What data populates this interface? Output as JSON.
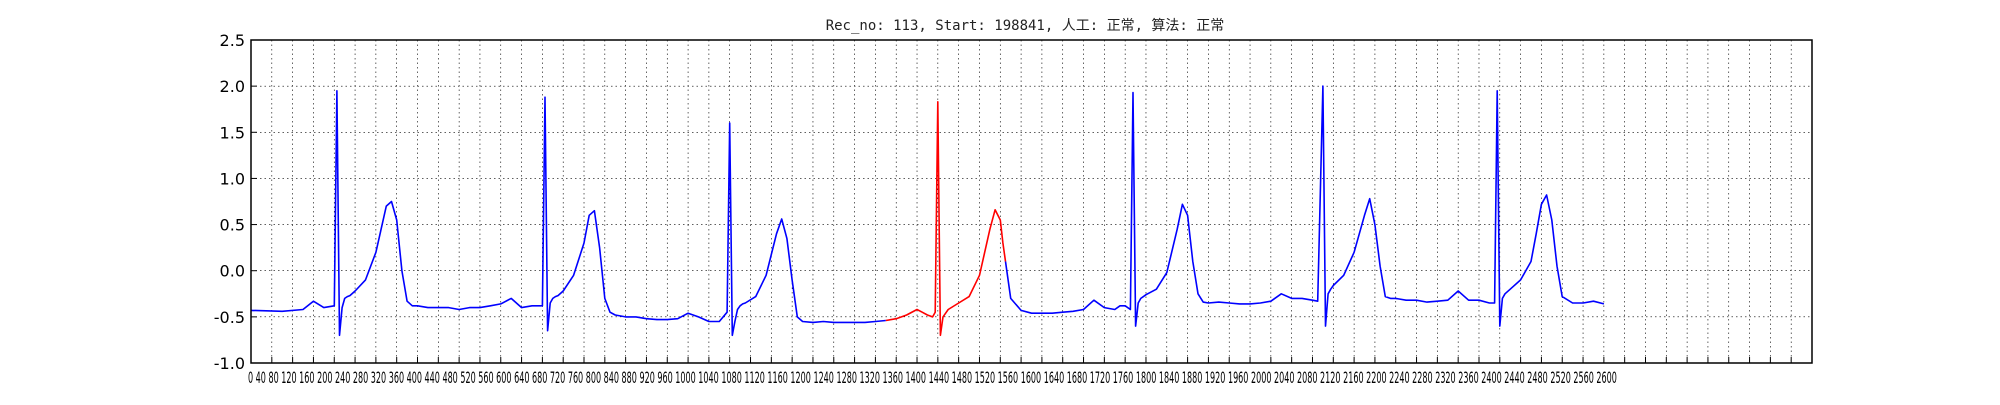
{
  "chart_data": {
    "type": "line",
    "title": "Rec_no: 113, Start: 198841, 人工: 正常, 算法: 正常",
    "xlabel": "",
    "ylabel": "",
    "xlim": [
      0,
      3000
    ],
    "ylim": [
      -1.0,
      2.5
    ],
    "grid": true,
    "y_ticks": [
      -1.0,
      -0.5,
      0.0,
      0.5,
      1.0,
      1.5,
      2.0,
      2.5
    ],
    "x_ticks": [
      0,
      40,
      80,
      120,
      160,
      200,
      240,
      280,
      320,
      360,
      400,
      440,
      480,
      520,
      560,
      600,
      640,
      680,
      720,
      760,
      800,
      840,
      880,
      920,
      960,
      1000,
      1040,
      1080,
      1120,
      1160,
      1200,
      1240,
      1280,
      1320,
      1360,
      1400,
      1440,
      1480,
      1520,
      1560,
      1600,
      1640,
      1680,
      1720,
      1760,
      1800,
      1840,
      1880,
      1920,
      1960,
      2000,
      2040,
      2080,
      2120,
      2160,
      2200,
      2240,
      2280,
      2320,
      2360,
      2400,
      2440,
      2480,
      2520,
      2560,
      2600,
      2640,
      2680,
      2720,
      2760,
      2800,
      2840,
      2880,
      2920,
      2960,
      3000
    ],
    "x_ticklabels_shown": "0 40 80 120 160 200 240 280 320 360 400 440 480 520 560 600 640 680 720 760 800 840 880 920 960 1000 1040 1080 1120 1160 1200 1240 1280 1320 1360 1400 1440 1480 1520 1560 1600 1640 1680 1720 1760 1800 1840 1880 1920 1960 2000 2040 2080 2120 2160 2200 2240 2280 2320 2360 2400 2440 2480 2520 2560 2600",
    "series": [
      {
        "color": "#0000ff",
        "x": [
          0,
          60,
          100,
          120,
          140,
          160,
          165,
          170,
          175,
          180,
          185,
          190,
          200,
          220,
          240,
          260,
          270,
          280,
          290,
          300,
          310,
          320,
          340,
          360,
          380,
          400,
          420,
          440,
          460,
          480,
          500,
          520,
          540,
          560,
          565,
          570,
          575,
          580,
          585,
          590,
          600,
          620,
          640,
          650,
          660,
          670,
          680,
          690,
          700,
          720,
          740,
          760,
          780,
          800,
          820,
          840,
          860,
          880,
          900,
          915,
          920,
          925,
          930,
          935,
          940,
          945,
          950,
          970,
          990,
          1010,
          1020,
          1030,
          1040,
          1050,
          1060,
          1080,
          1100,
          1120,
          1140,
          1160,
          1180,
          1200,
          1220
        ],
        "y": [
          -0.43,
          -0.44,
          -0.42,
          -0.33,
          -0.4,
          -0.38,
          1.95,
          -0.7,
          -0.4,
          -0.3,
          -0.28,
          -0.27,
          -0.22,
          -0.1,
          0.2,
          0.7,
          0.75,
          0.55,
          0.0,
          -0.33,
          -0.38,
          -0.38,
          -0.4,
          -0.4,
          -0.4,
          -0.42,
          -0.4,
          -0.4,
          -0.38,
          -0.36,
          -0.3,
          -0.4,
          -0.38,
          -0.38,
          1.88,
          -0.65,
          -0.35,
          -0.3,
          -0.28,
          -0.27,
          -0.22,
          -0.05,
          0.3,
          0.6,
          0.65,
          0.25,
          -0.3,
          -0.45,
          -0.48,
          -0.5,
          -0.5,
          -0.52,
          -0.53,
          -0.53,
          -0.52,
          -0.46,
          -0.5,
          -0.55,
          -0.55,
          -0.45,
          1.6,
          -0.7,
          -0.55,
          -0.42,
          -0.38,
          -0.36,
          -0.35,
          -0.28,
          -0.05,
          0.4,
          0.56,
          0.35,
          -0.1,
          -0.5,
          -0.55,
          -0.56,
          -0.55,
          -0.56,
          -0.56,
          -0.56,
          -0.56,
          -0.55,
          -0.54
        ]
      },
      {
        "color": "#ff0000",
        "x": [
          1220,
          1240,
          1260,
          1280,
          1290,
          1300,
          1310,
          1315,
          1320,
          1325,
          1330,
          1340,
          1360,
          1380,
          1400,
          1420,
          1430,
          1440,
          1445,
          1450
        ],
        "y": [
          -0.54,
          -0.52,
          -0.48,
          -0.42,
          -0.45,
          -0.48,
          -0.5,
          -0.45,
          1.83,
          -0.7,
          -0.5,
          -0.42,
          -0.35,
          -0.28,
          -0.05,
          0.45,
          0.66,
          0.55,
          0.3,
          0.1
        ]
      },
      {
        "color": "#0000ff",
        "x": [
          1450,
          1460,
          1480,
          1500,
          1520,
          1540,
          1560,
          1580,
          1600,
          1620,
          1640,
          1660,
          1670,
          1680,
          1690,
          1695,
          1700,
          1705,
          1710,
          1720,
          1740,
          1760,
          1780,
          1790,
          1800,
          1810,
          1820,
          1830,
          1840,
          1860,
          1880,
          1900,
          1920,
          1940,
          1960,
          1980,
          2000,
          2020,
          2040,
          2050,
          2060,
          2065,
          2070,
          2075,
          2080,
          2100,
          2120,
          2140,
          2150,
          2160,
          2170,
          2180,
          2190,
          2200,
          2220,
          2240,
          2260,
          2280,
          2300,
          2320,
          2340,
          2360,
          2380,
          2390,
          2395,
          2400,
          2405,
          2410,
          2420,
          2440,
          2460,
          2470,
          2480,
          2490,
          2500,
          2510,
          2520,
          2540,
          2560,
          2580,
          2600
        ],
        "y": [
          0.1,
          -0.3,
          -0.43,
          -0.46,
          -0.46,
          -0.46,
          -0.45,
          -0.44,
          -0.42,
          -0.32,
          -0.4,
          -0.42,
          -0.38,
          -0.38,
          -0.42,
          1.93,
          -0.6,
          -0.35,
          -0.3,
          -0.26,
          -0.2,
          -0.02,
          0.45,
          0.72,
          0.6,
          0.1,
          -0.25,
          -0.34,
          -0.35,
          -0.34,
          -0.35,
          -0.36,
          -0.36,
          -0.35,
          -0.33,
          -0.25,
          -0.3,
          -0.3,
          -0.32,
          -0.33,
          2.0,
          -0.6,
          -0.25,
          -0.2,
          -0.16,
          -0.05,
          0.2,
          0.6,
          0.78,
          0.5,
          0.05,
          -0.28,
          -0.3,
          -0.3,
          -0.32,
          -0.32,
          -0.34,
          -0.33,
          -0.32,
          -0.22,
          -0.32,
          -0.32,
          -0.35,
          -0.35,
          1.95,
          -0.6,
          -0.3,
          -0.25,
          -0.2,
          -0.1,
          0.1,
          0.4,
          0.72,
          0.82,
          0.55,
          0.05,
          -0.28,
          -0.35,
          -0.35,
          -0.33,
          -0.36
        ]
      }
    ]
  }
}
